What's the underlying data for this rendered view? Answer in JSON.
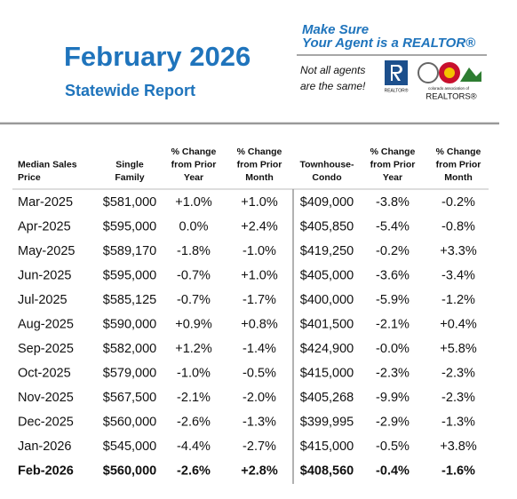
{
  "header": {
    "title": "February 2026",
    "subtitle": "Statewide Report",
    "slogan": [
      "Make Sure",
      "Your Agent is a REALTOR®"
    ],
    "tagline": [
      "Not all agents",
      "are the same!"
    ],
    "logo_realtor": "REALTOR®",
    "logo_car": [
      "colorado association of",
      "REALTORS®"
    ]
  },
  "table": {
    "columns": [
      [
        "Median Sales",
        "Price"
      ],
      [
        "Single",
        "Family"
      ],
      [
        "% Change",
        "from Prior",
        "Year"
      ],
      [
        "% Change",
        "from Prior",
        "Month"
      ],
      [
        "Townhouse-",
        "Condo"
      ],
      [
        "% Change",
        "from Prior",
        "Year"
      ],
      [
        "% Change",
        "from Prior",
        "Month"
      ]
    ],
    "rows": [
      [
        "Mar-2025",
        "$581,000",
        "+1.0%",
        "+1.0%",
        "$409,000",
        "-3.8%",
        "-0.2%"
      ],
      [
        "Apr-2025",
        "$595,000",
        "0.0%",
        "+2.4%",
        "$405,850",
        "-5.4%",
        "-0.8%"
      ],
      [
        "May-2025",
        "$589,170",
        "-1.8%",
        "-1.0%",
        "$419,250",
        "-0.2%",
        "+3.3%"
      ],
      [
        "Jun-2025",
        "$595,000",
        "-0.7%",
        "+1.0%",
        "$405,000",
        "-3.6%",
        "-3.4%"
      ],
      [
        "Jul-2025",
        "$585,125",
        "-0.7%",
        "-1.7%",
        "$400,000",
        "-5.9%",
        "-1.2%"
      ],
      [
        "Aug-2025",
        "$590,000",
        "+0.9%",
        "+0.8%",
        "$401,500",
        "-2.1%",
        "+0.4%"
      ],
      [
        "Sep-2025",
        "$582,000",
        "+1.2%",
        "-1.4%",
        "$424,900",
        "-0.0%",
        "+5.8%"
      ],
      [
        "Oct-2025",
        "$579,000",
        "-1.0%",
        "-0.5%",
        "$415,000",
        "-2.3%",
        "-2.3%"
      ],
      [
        "Nov-2025",
        "$567,500",
        "-2.1%",
        "-2.0%",
        "$405,268",
        "-9.9%",
        "-2.3%"
      ],
      [
        "Dec-2025",
        "$560,000",
        "-2.6%",
        "-1.3%",
        "$399,995",
        "-2.9%",
        "-1.3%"
      ],
      [
        "Jan-2026",
        "$545,000",
        "-4.4%",
        "-2.7%",
        "$415,000",
        "-0.5%",
        "+3.8%"
      ],
      [
        "Feb-2026",
        "$560,000",
        "-2.6%",
        "+2.8%",
        "$408,560",
        "-0.4%",
        "-1.6%"
      ]
    ]
  }
}
